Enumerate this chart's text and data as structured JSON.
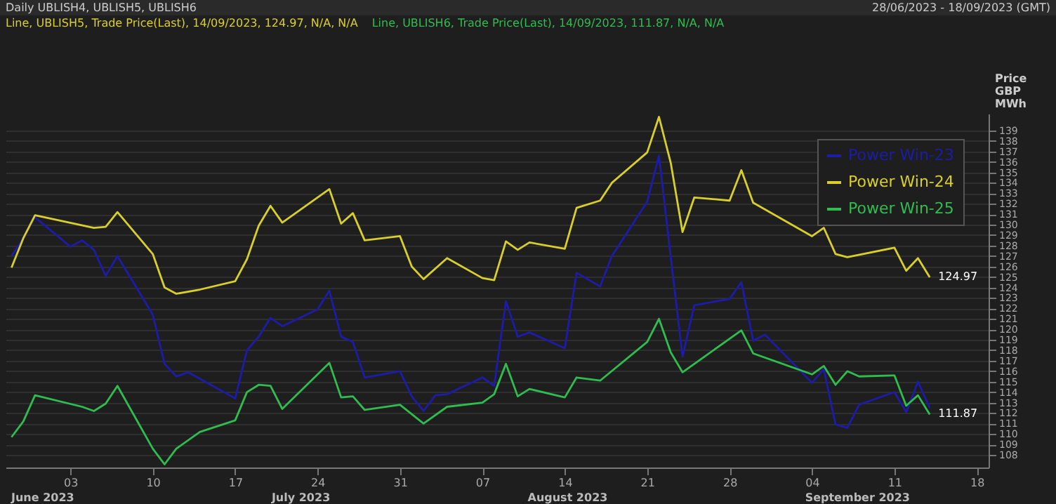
{
  "chart_data": {
    "type": "line",
    "title": "Daily UBLISH4, UBLISH5, UBLISH6",
    "subtitle": "28/06/2023 - 18/09/2023 (GMT)",
    "ylabel": "Price GBP MWh",
    "annotations": [
      "Line, UBLISH5, Trade Price(Last), 14/09/2023, 124.97, N/A, N/A",
      "Line, UBLISH6, Trade Price(Last), 14/09/2023, 111.87, N/A, N/A",
      {
        "text": "124.97",
        "x": "2023-09-14",
        "y": 124.97
      },
      {
        "text": "111.87",
        "x": "2023-09-14",
        "y": 111.87
      },
      "June 2023",
      "July 2023",
      "August 2023",
      "September 2023"
    ],
    "xlim": [
      "2023-06-27T12:00",
      "2023-09-19"
    ],
    "xticks": [
      {
        "value": "2023-07-03",
        "label": "03"
      },
      {
        "value": "2023-07-10",
        "label": "10"
      },
      {
        "value": "2023-07-17",
        "label": "17"
      },
      {
        "value": "2023-07-24",
        "label": "24"
      },
      {
        "value": "2023-07-31",
        "label": "31"
      },
      {
        "value": "2023-08-07",
        "label": "07"
      },
      {
        "value": "2023-08-14",
        "label": "14"
      },
      {
        "value": "2023-08-21",
        "label": "21"
      },
      {
        "value": "2023-08-28",
        "label": "28"
      },
      {
        "value": "2023-09-04",
        "label": "04"
      },
      {
        "value": "2023-09-11",
        "label": "11"
      },
      {
        "value": "2023-09-18",
        "label": "18"
      }
    ],
    "ylim": [
      106.8,
      140.6
    ],
    "yticks": [
      108,
      109,
      110,
      111,
      112,
      113,
      114,
      115,
      116,
      117,
      118,
      119,
      120,
      121,
      122,
      123,
      124,
      125,
      126,
      127,
      128,
      129,
      130,
      131,
      132,
      133,
      134,
      135,
      136,
      137,
      138,
      139
    ],
    "grid": "y",
    "legend": "top right",
    "line_style": "solid",
    "series": [
      {
        "name": "Power Win-23",
        "color": "#1c1ca8",
        "x": [
          "2023-06-28",
          "2023-06-29",
          "2023-06-30",
          "2023-07-03",
          "2023-07-04",
          "2023-07-05",
          "2023-07-06",
          "2023-07-07",
          "2023-07-10",
          "2023-07-11",
          "2023-07-12",
          "2023-07-13",
          "2023-07-17",
          "2023-07-18",
          "2023-07-19",
          "2023-07-20",
          "2023-07-21",
          "2023-07-24",
          "2023-07-25",
          "2023-07-26",
          "2023-07-27",
          "2023-07-28",
          "2023-07-31",
          "2023-08-01",
          "2023-08-02",
          "2023-08-03",
          "2023-08-04",
          "2023-08-07",
          "2023-08-08",
          "2023-08-09",
          "2023-08-10",
          "2023-08-11",
          "2023-08-14",
          "2023-08-15",
          "2023-08-17",
          "2023-08-18",
          "2023-08-21",
          "2023-08-22",
          "2023-08-23",
          "2023-08-24",
          "2023-08-25",
          "2023-08-28",
          "2023-08-29",
          "2023-08-30",
          "2023-08-31",
          "2023-09-04",
          "2023-09-05",
          "2023-09-06",
          "2023-09-07",
          "2023-09-08",
          "2023-09-11",
          "2023-09-12",
          "2023-09-13",
          "2023-09-14"
        ],
        "values": [
          127.0,
          128.7,
          130.7,
          127.9,
          128.5,
          127.6,
          125.1,
          127.0,
          121.4,
          116.7,
          115.5,
          115.9,
          113.4,
          118.0,
          119.3,
          121.1,
          120.3,
          121.9,
          123.7,
          119.3,
          118.8,
          115.4,
          116.0,
          113.6,
          112.2,
          113.7,
          113.8,
          115.4,
          114.6,
          122.7,
          119.3,
          119.7,
          118.2,
          125.4,
          124.1,
          127.0,
          132.2,
          136.6,
          126.9,
          117.4,
          122.3,
          122.9,
          124.5,
          118.9,
          119.5,
          114.9,
          116.2,
          110.9,
          110.6,
          112.8,
          114.0,
          112.1,
          115.0,
          112.5
        ]
      },
      {
        "name": "Power Win-24",
        "color": "#d9cf2b",
        "x": [
          "2023-06-28",
          "2023-06-29",
          "2023-06-30",
          "2023-07-05",
          "2023-07-06",
          "2023-07-07",
          "2023-07-10",
          "2023-07-11",
          "2023-07-12",
          "2023-07-14",
          "2023-07-17",
          "2023-07-18",
          "2023-07-19",
          "2023-07-20",
          "2023-07-21",
          "2023-07-25",
          "2023-07-26",
          "2023-07-27",
          "2023-07-28",
          "2023-07-31",
          "2023-08-01",
          "2023-08-02",
          "2023-08-04",
          "2023-08-07",
          "2023-08-08",
          "2023-08-09",
          "2023-08-10",
          "2023-08-11",
          "2023-08-14",
          "2023-08-15",
          "2023-08-17",
          "2023-08-18",
          "2023-08-21",
          "2023-08-22",
          "2023-08-23",
          "2023-08-24",
          "2023-08-25",
          "2023-08-28",
          "2023-08-29",
          "2023-08-30",
          "2023-09-04",
          "2023-09-05",
          "2023-09-06",
          "2023-09-07",
          "2023-09-11",
          "2023-09-12",
          "2023-09-13",
          "2023-09-14"
        ],
        "values": [
          125.9,
          128.7,
          130.9,
          129.7,
          129.8,
          131.2,
          127.2,
          124.0,
          123.4,
          123.8,
          124.6,
          126.7,
          129.9,
          131.8,
          130.2,
          133.4,
          130.1,
          131.1,
          128.5,
          128.9,
          126.0,
          124.8,
          126.8,
          124.9,
          124.7,
          128.4,
          127.6,
          128.3,
          127.7,
          131.6,
          132.3,
          134.0,
          136.9,
          140.3,
          135.9,
          129.3,
          132.6,
          132.3,
          135.2,
          132.1,
          128.9,
          129.7,
          127.2,
          126.9,
          127.8,
          125.6,
          126.8,
          124.97
        ]
      },
      {
        "name": "Power Win-25",
        "color": "#2ebd4e",
        "x": [
          "2023-06-28",
          "2023-06-29",
          "2023-06-30",
          "2023-07-04",
          "2023-07-05",
          "2023-07-06",
          "2023-07-07",
          "2023-07-10",
          "2023-07-11",
          "2023-07-12",
          "2023-07-14",
          "2023-07-17",
          "2023-07-18",
          "2023-07-19",
          "2023-07-20",
          "2023-07-21",
          "2023-07-25",
          "2023-07-26",
          "2023-07-27",
          "2023-07-28",
          "2023-07-31",
          "2023-08-02",
          "2023-08-04",
          "2023-08-07",
          "2023-08-08",
          "2023-08-09",
          "2023-08-10",
          "2023-08-11",
          "2023-08-14",
          "2023-08-15",
          "2023-08-17",
          "2023-08-21",
          "2023-08-22",
          "2023-08-23",
          "2023-08-24",
          "2023-08-29",
          "2023-08-30",
          "2023-09-04",
          "2023-09-05",
          "2023-09-06",
          "2023-09-07",
          "2023-09-08",
          "2023-09-11",
          "2023-09-12",
          "2023-09-13",
          "2023-09-14"
        ],
        "values": [
          109.7,
          111.2,
          113.7,
          112.6,
          112.2,
          112.9,
          114.6,
          108.6,
          107.1,
          108.6,
          110.2,
          111.3,
          114.0,
          114.7,
          114.6,
          112.4,
          116.8,
          113.5,
          113.6,
          112.3,
          112.8,
          111.0,
          112.6,
          113.0,
          113.8,
          116.7,
          113.6,
          114.3,
          113.5,
          115.4,
          115.1,
          118.8,
          121.0,
          117.8,
          115.9,
          119.9,
          117.7,
          115.7,
          116.5,
          114.7,
          116.0,
          115.5,
          115.6,
          112.7,
          113.7,
          111.87
        ]
      }
    ]
  }
}
